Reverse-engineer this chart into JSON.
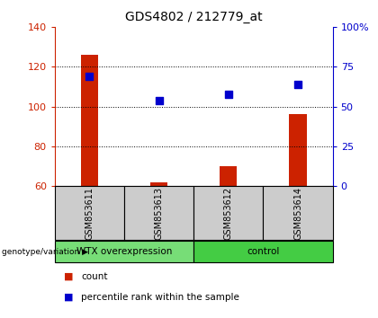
{
  "title": "GDS4802 / 212779_at",
  "samples": [
    "GSM853611",
    "GSM853613",
    "GSM853612",
    "GSM853614"
  ],
  "red_values": [
    126,
    62,
    70,
    96
  ],
  "blue_values": [
    115,
    103,
    106,
    111
  ],
  "ylim_left": [
    60,
    140
  ],
  "ylim_right": [
    0,
    100
  ],
  "left_ticks": [
    60,
    80,
    100,
    120,
    140
  ],
  "right_ticks": [
    0,
    25,
    50,
    75,
    100
  ],
  "right_tick_labels": [
    "0",
    "25",
    "50",
    "75",
    "100%"
  ],
  "bar_color": "#cc2200",
  "dot_color": "#0000cc",
  "bg_color": "#ffffff",
  "groups": [
    {
      "label": "WTX overexpression",
      "indices": [
        0,
        1
      ],
      "color": "#77dd77"
    },
    {
      "label": "control",
      "indices": [
        2,
        3
      ],
      "color": "#44cc44"
    }
  ],
  "sample_bg_color": "#cccccc",
  "legend_items": [
    {
      "label": "count",
      "color": "#cc2200"
    },
    {
      "label": "percentile rank within the sample",
      "color": "#0000cc"
    }
  ],
  "bar_width": 0.25,
  "dot_size": 40
}
